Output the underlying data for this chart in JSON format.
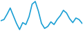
{
  "values": [
    45,
    48,
    62,
    78,
    58,
    38,
    22,
    40,
    35,
    55,
    88,
    95,
    70,
    38,
    25,
    30,
    42,
    35,
    48,
    58,
    72,
    65,
    50,
    40,
    52,
    48,
    38
  ],
  "line_color": "#1a9fd4",
  "background_color": "#ffffff",
  "linewidth": 1.2
}
